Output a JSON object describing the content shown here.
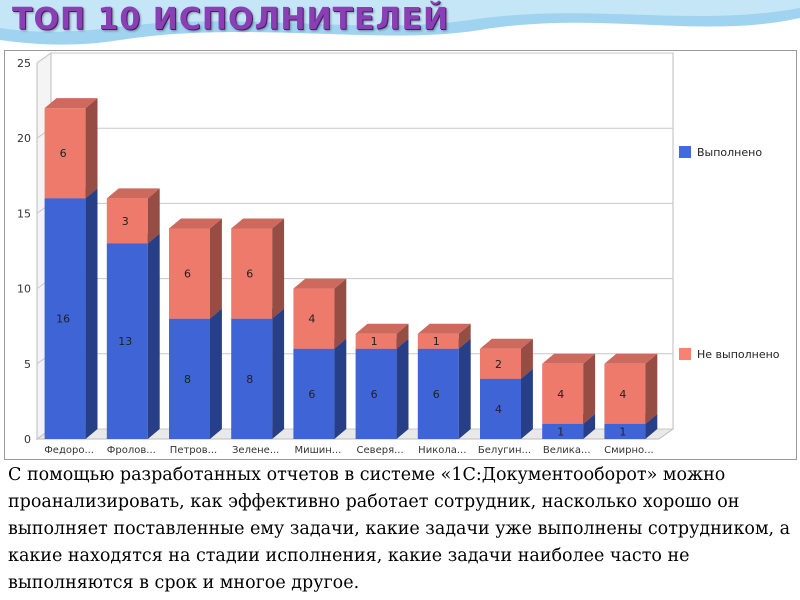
{
  "slide": {
    "title": "ТОП 10 ИСПОЛНИТЕЛЕЙ",
    "description": "С помощью разработанных отчетов в системе «1С:Документооборот» можно проанализировать, как эффективно работает сотрудник, насколько хорошо он выполняет поставленные ему задачи, какие задачи уже выполнены сотрудником, а какие находятся на стадии исполнения, какие задачи наиболее часто не выполняются в срок и многое другое."
  },
  "colors": {
    "title": "#8a3fb5",
    "done": "#4169e1",
    "not_done": "#fa8072"
  },
  "chart_data": {
    "type": "bar",
    "stacked": true,
    "three_d": true,
    "categories": [
      "Федоро...",
      "Фролов...",
      "Петров...",
      "Зелене...",
      "Мишин...",
      "Северя...",
      "Никола...",
      "Белугин...",
      "Велика...",
      "Смирно..."
    ],
    "series": [
      {
        "name": "Выполнено",
        "color": "#4169e1",
        "values": [
          16,
          13,
          8,
          8,
          6,
          6,
          6,
          4,
          1,
          1
        ]
      },
      {
        "name": "Не выполнено",
        "color": "#fa8072",
        "values": [
          6,
          3,
          6,
          6,
          4,
          1,
          1,
          2,
          4,
          4
        ]
      }
    ],
    "ylim": [
      0,
      25
    ],
    "yticks": [
      0,
      5,
      10,
      15,
      20,
      25
    ],
    "grid": true,
    "legend": "right"
  }
}
